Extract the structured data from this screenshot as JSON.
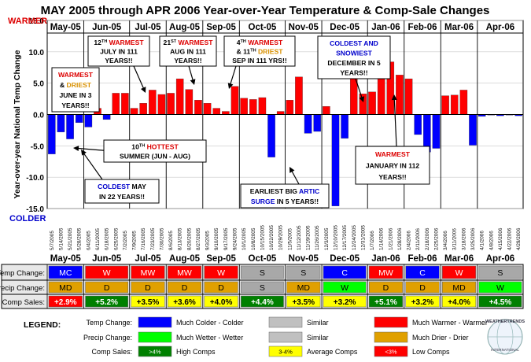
{
  "chart_data": {
    "type": "bar",
    "title": "MAY 2005 through APR 2006 Year-over-Year Temperature & Comp-Sale Changes",
    "ylabel": "Year-over-year National Temp Change",
    "y_top_label": "WARMER",
    "y_bottom_label": "COLDER",
    "ylim": [
      -15,
      15
    ],
    "yticks": [
      "15.0",
      "10.0",
      "5.0",
      "0.0",
      "-5.0",
      "-10.0",
      "-15.0"
    ],
    "ytick_values": [
      15,
      10,
      5,
      0,
      -5,
      -10,
      -15
    ],
    "months": [
      "May-05",
      "Jun-05",
      "Jul-05",
      "Aug-05",
      "Sep-05",
      "Oct-05",
      "Nov-05",
      "Dec-05",
      "Jan-06",
      "Feb-06",
      "Mar-06",
      "Apr-06"
    ],
    "weeks": [
      {
        "date": "5/7/2005",
        "value": -6.3
      },
      {
        "date": "5/14/2005",
        "value": -2.8
      },
      {
        "date": "5/21/2005",
        "value": -3.9
      },
      {
        "date": "5/28/2005",
        "value": -1.3
      },
      {
        "date": "6/4/2005",
        "value": -2.0
      },
      {
        "date": "6/11/2005",
        "value": 1.0
      },
      {
        "date": "6/18/2005",
        "value": -0.8
      },
      {
        "date": "6/25/2005",
        "value": 3.4
      },
      {
        "date": "7/2/2005",
        "value": 3.4
      },
      {
        "date": "7/9/2005",
        "value": 1.0
      },
      {
        "date": "7/16/2005",
        "value": 1.8
      },
      {
        "date": "7/23/2005",
        "value": 3.9
      },
      {
        "date": "7/30/2005",
        "value": 3.2
      },
      {
        "date": "8/6/2005",
        "value": 3.4
      },
      {
        "date": "8/13/2005",
        "value": 5.7
      },
      {
        "date": "8/20/2005",
        "value": 4.0
      },
      {
        "date": "8/27/2005",
        "value": 2.3
      },
      {
        "date": "9/3/2005",
        "value": 1.8
      },
      {
        "date": "9/10/2005",
        "value": 1.0
      },
      {
        "date": "9/17/2005",
        "value": 0.5
      },
      {
        "date": "9/24/2005",
        "value": 4.5
      },
      {
        "date": "10/1/2005",
        "value": 2.6
      },
      {
        "date": "10/8/2005",
        "value": 2.4
      },
      {
        "date": "10/15/2005",
        "value": 2.7
      },
      {
        "date": "10/22/2005",
        "value": -6.8
      },
      {
        "date": "10/29/2005",
        "value": 0.5
      },
      {
        "date": "11/5/2005",
        "value": 2.3
      },
      {
        "date": "11/12/2005",
        "value": 6.0
      },
      {
        "date": "11/19/2005",
        "value": -3.0
      },
      {
        "date": "11/26/2005",
        "value": -2.7
      },
      {
        "date": "12/3/2005",
        "value": 1.3
      },
      {
        "date": "12/10/2005",
        "value": -14.6
      },
      {
        "date": "12/17/2005",
        "value": -3.8
      },
      {
        "date": "12/24/2005",
        "value": 6.5
      },
      {
        "date": "12/31/2005",
        "value": 3.3
      },
      {
        "date": "1/7/2006",
        "value": 3.6
      },
      {
        "date": "1/14/2006",
        "value": 5.8
      },
      {
        "date": "1/21/2006",
        "value": 8.4
      },
      {
        "date": "1/28/2006",
        "value": 6.3
      },
      {
        "date": "2/4/2006",
        "value": 5.7
      },
      {
        "date": "2/11/2006",
        "value": -3.2
      },
      {
        "date": "2/18/2006",
        "value": -6.0
      },
      {
        "date": "2/25/2006",
        "value": -5.4
      },
      {
        "date": "3/4/2006",
        "value": 3.0
      },
      {
        "date": "3/11/2006",
        "value": 3.1
      },
      {
        "date": "3/18/2006",
        "value": 3.9
      },
      {
        "date": "3/25/2006",
        "value": -4.9
      },
      {
        "date": "4/1/2006",
        "value": -0.3
      },
      {
        "date": "4/8/2006",
        "value": -0.1
      },
      {
        "date": "4/15/2006",
        "value": -0.2
      },
      {
        "date": "4/22/2006",
        "value": -0.1
      },
      {
        "date": "4/29/2006",
        "value": -0.2
      }
    ],
    "annotations": [
      {
        "lines": [
          [
            {
              "t": "W",
              "c": "#dd0000"
            },
            {
              "t": "ARMEST",
              "c": "#dd0000"
            }
          ],
          [
            {
              "t": "& ",
              "c": "#000"
            },
            {
              "t": "DRIEST",
              "c": "#d89000"
            }
          ],
          [
            {
              "t": "JUNE IN 3",
              "c": "#000"
            }
          ],
          [
            {
              "t": "YEARS!!",
              "c": "#000"
            }
          ]
        ]
      },
      {
        "lines": [
          [
            {
              "t": "12",
              "c": "#000"
            },
            {
              "t": "TH",
              "c": "#000",
              "sup": true
            },
            {
              "t": " WARMEST",
              "c": "#dd0000"
            }
          ],
          [
            {
              "t": "JULY IN 111",
              "c": "#000"
            }
          ],
          [
            {
              "t": "YEARS!!",
              "c": "#000"
            }
          ]
        ]
      },
      {
        "lines": [
          [
            {
              "t": "21",
              "c": "#000"
            },
            {
              "t": "ST",
              "c": "#000",
              "sup": true
            },
            {
              "t": " WARMEST",
              "c": "#dd0000"
            }
          ],
          [
            {
              "t": "AUG IN 111",
              "c": "#000"
            }
          ],
          [
            {
              "t": "YEARS!!",
              "c": "#000"
            }
          ]
        ]
      },
      {
        "lines": [
          [
            {
              "t": "4",
              "c": "#000"
            },
            {
              "t": "TH",
              "c": "#000",
              "sup": true
            },
            {
              "t": " WARMEST",
              "c": "#dd0000"
            }
          ],
          [
            {
              "t": "& 11",
              "c": "#000"
            },
            {
              "t": "TH",
              "c": "#000",
              "sup": true
            },
            {
              "t": " DRIEST",
              "c": "#d89000"
            }
          ],
          [
            {
              "t": "SEP IN 111 YRS!!",
              "c": "#000"
            }
          ]
        ]
      },
      {
        "lines": [
          [
            {
              "t": "COLDEST AND",
              "c": "#0000cc"
            }
          ],
          [
            {
              "t": "SNOWIEST",
              "c": "#0000cc"
            }
          ],
          [
            {
              "t": "DECEMBER IN 5",
              "c": "#000"
            }
          ],
          [
            {
              "t": "YEARS!!",
              "c": "#000"
            }
          ]
        ]
      },
      {
        "lines": [
          [
            {
              "t": "10",
              "c": "#000"
            },
            {
              "t": "TH",
              "c": "#000",
              "sup": true
            },
            {
              "t": " HOTTEST",
              "c": "#dd0000"
            }
          ],
          [
            {
              "t": "SUMMER (JUN - AUG)",
              "c": "#000"
            }
          ]
        ]
      },
      {
        "lines": [
          [
            {
              "t": "COLDEST",
              "c": "#0000cc"
            },
            {
              "t": " MAY",
              "c": "#000"
            }
          ],
          [
            {
              "t": "IN 22 YEARS!!",
              "c": "#000"
            }
          ]
        ]
      },
      {
        "lines": [
          [
            {
              "t": "EARLIEST BIG ",
              "c": "#000"
            },
            {
              "t": "ARTIC",
              "c": "#0000cc"
            }
          ],
          [
            {
              "t": "SURGE",
              "c": "#0000cc"
            },
            {
              "t": " IN 5 YEARS!!",
              "c": "#000"
            }
          ]
        ]
      },
      {
        "lines": [
          [
            {
              "t": "WARMEST",
              "c": "#dd0000"
            }
          ],
          [
            {
              "t": "JANUARY IN 112",
              "c": "#000"
            }
          ],
          [
            {
              "t": "YEARS!!",
              "c": "#000"
            }
          ]
        ]
      }
    ],
    "table": {
      "rows": [
        {
          "label": "Temp Change:",
          "cells": [
            "MC",
            "W",
            "MW",
            "MW",
            "W",
            "S",
            "S",
            "C",
            "MW",
            "C",
            "W",
            "S"
          ]
        },
        {
          "label": "Precip Change:",
          "cells": [
            "MD",
            "D",
            "D",
            "D",
            "D",
            "S",
            "MD",
            "W",
            "D",
            "D",
            "MD",
            "W"
          ]
        },
        {
          "label": "Comp Sales:",
          "cells": [
            "+2.9%",
            "+5.2%",
            "+3.5%",
            "+3.6%",
            "+4.0%",
            "+4.4%",
            "+3.5%",
            "+3.2%",
            "+5.1%",
            "+3.2%",
            "+4.0%",
            "+4.5%"
          ]
        }
      ]
    },
    "legend": {
      "title": "LEGEND:",
      "rows": [
        {
          "label": "Temp Change:",
          "items": [
            {
              "swatch": "#0000ff",
              "text": "Much Colder - Colder"
            },
            {
              "swatch": "#c0c0c0",
              "text": "Similar"
            },
            {
              "swatch": "#ff0000",
              "text": "Much Warmer - Warmer"
            }
          ]
        },
        {
          "label": "Precip Change:",
          "items": [
            {
              "swatch": "#00ff00",
              "text": "Much Wetter - Wetter"
            },
            {
              "swatch": "#c0c0c0",
              "text": "Similar"
            },
            {
              "swatch": "#e0a000",
              "text": "Much Drier - Drier"
            }
          ]
        },
        {
          "label": "Comp Sales:",
          "items": [
            {
              "swatch": "#008000",
              "text": "High Comps",
              "inner": ">4%",
              "innerColor": "#ffffff"
            },
            {
              "swatch": "#ffff00",
              "text": "Average Comps",
              "inner": "3-4%",
              "innerColor": "#000000"
            },
            {
              "swatch": "#ff0000",
              "text": "Low Comps",
              "inner": "<3%",
              "innerColor": "#ffffff"
            }
          ]
        }
      ]
    },
    "logo": {
      "text": "WEATHERTRENDS",
      "sub": "INTERNATIONAL"
    }
  },
  "colors": {
    "bar_pos": "#ff0000",
    "bar_neg": "#0000ff",
    "temp": {
      "MC": "#0000ff",
      "C": "#0000ff",
      "S": "#a8a8a8",
      "W": "#ff0000",
      "MW": "#ff0000"
    },
    "precip": {
      "MD": "#e0a000",
      "D": "#e0a000",
      "S": "#a8a8a8",
      "W": "#00ff00",
      "MW": "#00ff00"
    },
    "sales_high": "#008000",
    "sales_avg": "#ffff00",
    "sales_low": "#ff0000"
  }
}
